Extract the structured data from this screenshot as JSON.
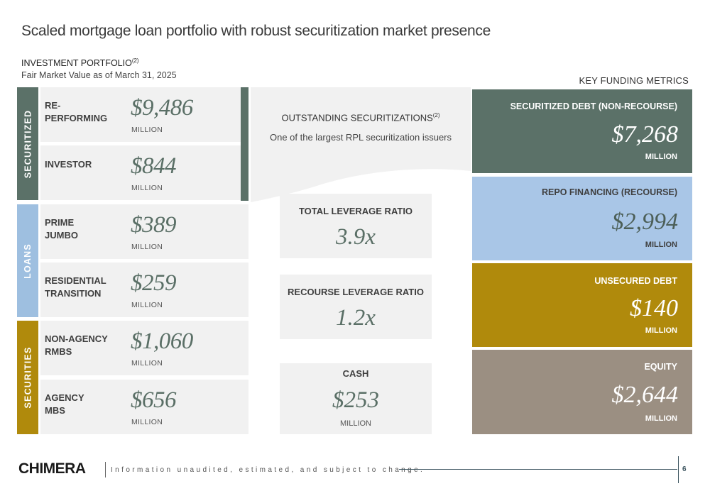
{
  "title": "Scaled mortgage loan portfolio with robust securitization market presence",
  "investment_portfolio": {
    "heading": "INVESTMENT PORTFOLIO",
    "heading_note": "(2)",
    "subheading": "Fair Market Value as of March 31, 2025",
    "groups": {
      "securitized": "SECURITIZED",
      "loans": "LOANS",
      "securities": "SECURITIES"
    },
    "items": [
      {
        "label": "RE-\nPERFORMING",
        "value": "$9,486",
        "unit": "MILLION"
      },
      {
        "label": "INVESTOR",
        "value": "$844",
        "unit": "MILLION"
      },
      {
        "label": "PRIME\nJUMBO",
        "value": "$389",
        "unit": "MILLION"
      },
      {
        "label": "RESIDENTIAL\nTRANSITION",
        "value": "$259",
        "unit": "MILLION"
      },
      {
        "label": "NON-AGENCY\nRMBS",
        "value": "$1,060",
        "unit": "MILLION"
      },
      {
        "label": "AGENCY\nMBS",
        "value": "$656",
        "unit": "MILLION"
      }
    ]
  },
  "securitizations": {
    "title": "OUTSTANDING SECURITIZATIONS",
    "title_note": "(2)",
    "subtitle": "One of the largest RPL securitization issuers"
  },
  "metrics": {
    "total_leverage": {
      "label": "TOTAL LEVERAGE RATIO",
      "value": "3.9x"
    },
    "recourse_leverage": {
      "label": "RECOURSE LEVERAGE RATIO",
      "value": "1.2x"
    },
    "cash": {
      "label": "CASH",
      "value": "$253",
      "unit": "MILLION"
    }
  },
  "key_funding": {
    "heading": "KEY FUNDING METRICS",
    "items": [
      {
        "label": "SECURITIZED DEBT (NON-RECOURSE)",
        "value": "$7,268",
        "unit": "MILLION",
        "color": "#5b7168"
      },
      {
        "label": "REPO FINANCING (RECOURSE)",
        "value": "$2,994",
        "unit": "MILLION",
        "color": "#a9c6e7"
      },
      {
        "label": "UNSECURED DEBT",
        "value": "$140",
        "unit": "MILLION",
        "color": "#b08a0c"
      },
      {
        "label": "EQUITY",
        "value": "$2,644",
        "unit": "MILLION",
        "color": "#9b8f82"
      }
    ]
  },
  "footer": {
    "logo": "CHIMERA",
    "disclaimer": "Information unaudited, estimated, and subject to change.",
    "page": "6"
  }
}
